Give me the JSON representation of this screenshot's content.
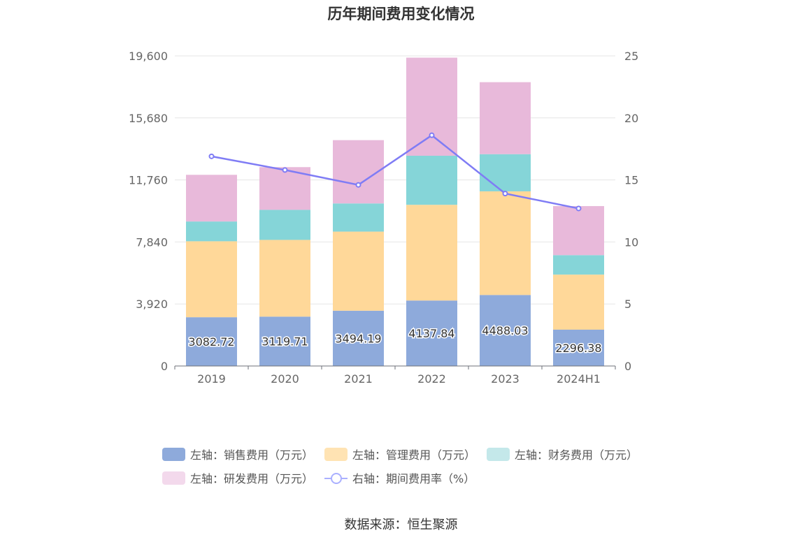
{
  "title": "历年期间费用变化情况",
  "source": "数据来源：恒生聚源",
  "legend": [
    {
      "label": "左轴：销售费用（万元）",
      "color": "#8eaadb",
      "kind": "bar"
    },
    {
      "label": "左轴：管理费用（万元）",
      "color": "#ffe3b3",
      "kind": "bar"
    },
    {
      "label": "左轴：财务费用（万元）",
      "color": "#c4e8ea",
      "kind": "bar"
    },
    {
      "label": "左轴：研发费用（万元）",
      "color": "#f3d9ec",
      "kind": "bar"
    },
    {
      "label": "右轴：期间费用率（%）",
      "color": "#aab0ff",
      "kind": "line"
    }
  ],
  "chart_data": {
    "type": "bar",
    "categories": [
      "2019",
      "2020",
      "2021",
      "2022",
      "2023",
      "2024H1"
    ],
    "stacked": true,
    "left_axis": {
      "min": 0,
      "max": 19600,
      "ticks": [
        "0",
        "3,920",
        "7,840",
        "11,760",
        "15,680",
        "19,600"
      ]
    },
    "right_axis": {
      "min": 0,
      "max": 25,
      "ticks": [
        "0",
        "5",
        "10",
        "15",
        "20",
        "25"
      ]
    },
    "series": [
      {
        "name": "左轴：销售费用（万元）",
        "axis": "left",
        "color": "#8eaadb",
        "values": [
          3082.72,
          3119.71,
          3494.19,
          4137.84,
          4488.03,
          2296.38
        ],
        "labels": [
          "3082.72",
          "3119.71",
          "3494.19",
          "4137.84",
          "4488.03",
          "2296.38"
        ]
      },
      {
        "name": "左轴：管理费用（万元）",
        "axis": "left",
        "color": "#ffd899",
        "values": [
          4800,
          4850,
          5000,
          6050,
          6550,
          3480
        ]
      },
      {
        "name": "左轴：财务费用（万元）",
        "axis": "left",
        "color": "#85d5d8",
        "values": [
          1250,
          1900,
          1780,
          3100,
          2350,
          1230
        ]
      },
      {
        "name": "左轴：研发费用（万元）",
        "axis": "left",
        "color": "#e8b9da",
        "values": [
          2950,
          2700,
          4000,
          6200,
          4550,
          3100
        ]
      },
      {
        "name": "右轴：期间费用率（%）",
        "axis": "right",
        "type": "line",
        "color": "#7f7cf5",
        "values": [
          16.9,
          15.8,
          14.6,
          18.6,
          13.9,
          12.7
        ]
      }
    ],
    "grid": true,
    "legend_position": "bottom"
  }
}
